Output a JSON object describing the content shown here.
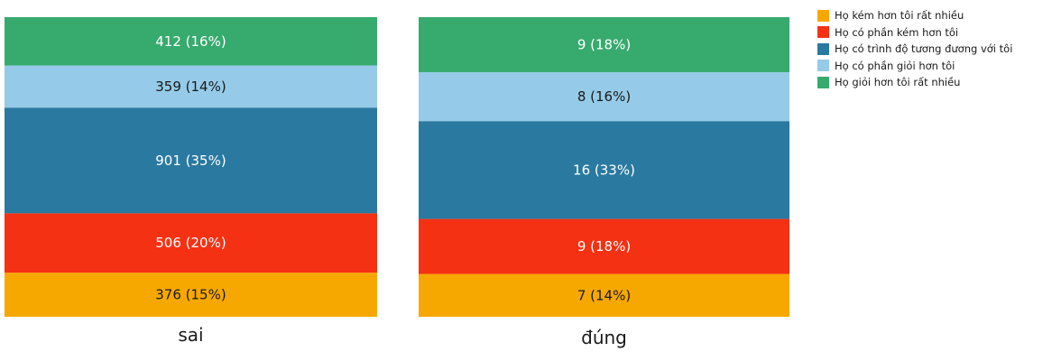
{
  "chart_data": {
    "type": "bar",
    "stacked": true,
    "normalized": true,
    "categories": [
      "sai",
      "đúng"
    ],
    "series": [
      {
        "name": "Họ kém hơn tôi rất nhiều",
        "color": "#f7a800",
        "values": [
          376,
          7
        ],
        "labels": [
          "376 (15%)",
          "7 (14%)"
        ]
      },
      {
        "name": "Họ có phần kém hơn tôi",
        "color": "#f53113",
        "values": [
          506,
          9
        ],
        "labels": [
          "506 (20%)",
          "9 (18%)"
        ]
      },
      {
        "name": "Họ có trình độ tương đương với tôi",
        "color": "#2a79a0",
        "values": [
          901,
          16
        ],
        "labels": [
          "901 (35%)",
          "16 (33%)"
        ]
      },
      {
        "name": "Họ có phần giỏi hơn tôi",
        "color": "#95cbe8",
        "values": [
          359,
          8
        ],
        "labels": [
          "359 (14%)",
          "8 (16%)"
        ]
      },
      {
        "name": "Họ giỏi hơn tôi rất nhiều",
        "color": "#37aa6e",
        "values": [
          412,
          9
        ],
        "labels": [
          "412 (16%)",
          "9 (18%)"
        ]
      }
    ],
    "legend_position": "top-right",
    "grid": false,
    "title": "",
    "xlabel": "",
    "ylabel": ""
  }
}
